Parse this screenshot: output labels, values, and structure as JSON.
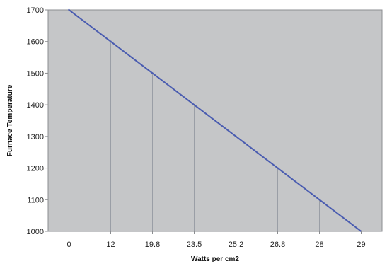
{
  "chart_data": {
    "type": "line",
    "title": "",
    "xlabel": "Watts per cm2",
    "ylabel": "Furnace Temperature",
    "categories": [
      "0",
      "12",
      "19.8",
      "23.5",
      "25.2",
      "26.8",
      "28",
      "29"
    ],
    "series": [
      {
        "values": [
          1700,
          1600,
          1500,
          1400,
          1300,
          1200,
          1100,
          1000
        ]
      }
    ],
    "ylim": [
      1000,
      1700
    ],
    "yticks": [
      1000,
      1100,
      1200,
      1300,
      1400,
      1500,
      1600,
      1700
    ],
    "grid": "vertical drop lines at each category",
    "legend": "none",
    "colors": {
      "plot_background": "#c5c6c8",
      "line": "#4a5cb0",
      "drop_lines": "#9a9ea6",
      "axis": "#8b8d90"
    }
  }
}
